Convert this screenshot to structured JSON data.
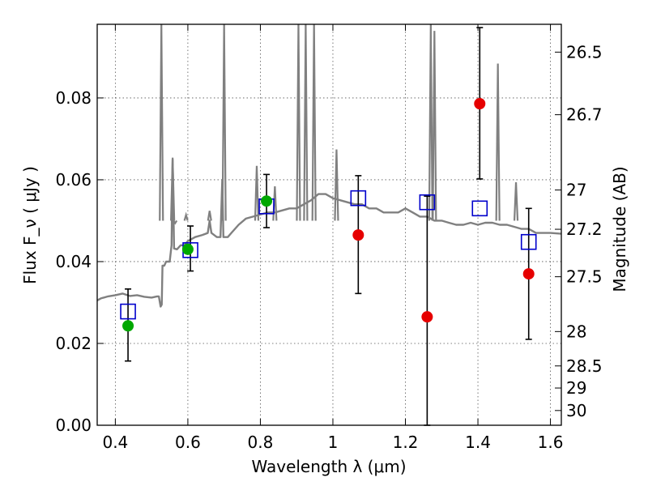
{
  "chart_data": {
    "type": "scatter",
    "xlabel": "Wavelength λ (μm)",
    "ylabel": "Flux F_ν ( μJy )",
    "y2label": "Magnitude (AB)",
    "xlim": [
      0.35,
      1.63
    ],
    "ylim": [
      0.0,
      0.098
    ],
    "grid": true,
    "x_ticks": [
      0.4,
      0.6,
      0.8,
      1.0,
      1.2,
      1.4,
      1.6
    ],
    "x_tick_labels": [
      "0.4",
      "0.6",
      "0.8",
      "1",
      "1.2",
      "1.4",
      "1.6"
    ],
    "y_ticks": [
      0.0,
      0.02,
      0.04,
      0.06,
      0.08
    ],
    "y_tick_labels": [
      "0.00",
      "0.02",
      "0.04",
      "0.06",
      "0.08"
    ],
    "y2_ticks": [
      {
        "mag": 26.5,
        "flux": 0.0912
      },
      {
        "mag": 26.7,
        "flux": 0.0759
      },
      {
        "mag": 27,
        "flux": 0.0575
      },
      {
        "mag": 27.2,
        "flux": 0.0479
      },
      {
        "mag": 27.5,
        "flux": 0.0363
      },
      {
        "mag": 28,
        "flux": 0.0229
      },
      {
        "mag": 28.5,
        "flux": 0.0145
      },
      {
        "mag": 29,
        "flux": 0.0091
      },
      {
        "mag": 30,
        "flux": 0.0036
      }
    ],
    "series": [
      {
        "marker": "model-spectrum-line",
        "color": "#808080",
        "points": [
          [
            0.35,
            0.0305
          ],
          [
            0.36,
            0.031
          ],
          [
            0.38,
            0.0315
          ],
          [
            0.4,
            0.0318
          ],
          [
            0.42,
            0.0322
          ],
          [
            0.44,
            0.0316
          ],
          [
            0.46,
            0.0318
          ],
          [
            0.48,
            0.0314
          ],
          [
            0.5,
            0.0312
          ],
          [
            0.515,
            0.0315
          ],
          [
            0.52,
            0.0315
          ],
          [
            0.525,
            0.029
          ],
          [
            0.528,
            0.0295
          ],
          [
            0.53,
            0.039
          ],
          [
            0.535,
            0.039
          ],
          [
            0.54,
            0.04
          ],
          [
            0.55,
            0.04
          ],
          [
            0.555,
            0.044
          ],
          [
            0.558,
            0.065
          ],
          [
            0.562,
            0.0432
          ],
          [
            0.57,
            0.043
          ],
          [
            0.58,
            0.044
          ],
          [
            0.59,
            0.044
          ],
          [
            0.6,
            0.045
          ],
          [
            0.62,
            0.046
          ],
          [
            0.64,
            0.0465
          ],
          [
            0.655,
            0.047
          ],
          [
            0.66,
            0.05
          ],
          [
            0.665,
            0.047
          ],
          [
            0.68,
            0.046
          ],
          [
            0.69,
            0.046
          ],
          [
            0.695,
            0.06
          ],
          [
            0.698,
            0.046
          ],
          [
            0.71,
            0.046
          ],
          [
            0.72,
            0.047
          ],
          [
            0.74,
            0.049
          ],
          [
            0.76,
            0.0505
          ],
          [
            0.78,
            0.051
          ],
          [
            0.8,
            0.0515
          ],
          [
            0.82,
            0.052
          ],
          [
            0.84,
            0.052
          ],
          [
            0.86,
            0.0525
          ],
          [
            0.88,
            0.053
          ],
          [
            0.9,
            0.053
          ],
          [
            0.92,
            0.054
          ],
          [
            0.94,
            0.055
          ],
          [
            0.96,
            0.0565
          ],
          [
            0.98,
            0.0565
          ],
          [
            1.0,
            0.0555
          ],
          [
            1.02,
            0.055
          ],
          [
            1.04,
            0.0545
          ],
          [
            1.06,
            0.054
          ],
          [
            1.08,
            0.054
          ],
          [
            1.1,
            0.053
          ],
          [
            1.12,
            0.053
          ],
          [
            1.14,
            0.052
          ],
          [
            1.16,
            0.052
          ],
          [
            1.18,
            0.052
          ],
          [
            1.2,
            0.053
          ],
          [
            1.22,
            0.052
          ],
          [
            1.24,
            0.051
          ],
          [
            1.26,
            0.051
          ],
          [
            1.28,
            0.05
          ],
          [
            1.3,
            0.05
          ],
          [
            1.32,
            0.0495
          ],
          [
            1.34,
            0.049
          ],
          [
            1.36,
            0.049
          ],
          [
            1.38,
            0.0495
          ],
          [
            1.4,
            0.049
          ],
          [
            1.42,
            0.0495
          ],
          [
            1.44,
            0.0495
          ],
          [
            1.46,
            0.049
          ],
          [
            1.48,
            0.049
          ],
          [
            1.5,
            0.0485
          ],
          [
            1.52,
            0.048
          ],
          [
            1.54,
            0.048
          ],
          [
            1.56,
            0.047
          ],
          [
            1.58,
            0.047
          ],
          [
            1.6,
            0.047
          ],
          [
            1.63,
            0.0468
          ]
        ]
      },
      {
        "marker": "spectrum-emission-lines",
        "color": "#808080",
        "lines": [
          [
            0.527,
            0.098
          ],
          [
            0.558,
            0.065
          ],
          [
            0.565,
            0.049
          ],
          [
            0.595,
            0.051
          ],
          [
            0.66,
            0.052
          ],
          [
            0.7,
            0.098
          ],
          [
            0.79,
            0.063
          ],
          [
            0.84,
            0.058
          ],
          [
            0.905,
            0.098
          ],
          [
            0.925,
            0.098
          ],
          [
            0.948,
            0.098
          ],
          [
            1.01,
            0.067
          ],
          [
            1.27,
            0.098
          ],
          [
            1.28,
            0.096
          ],
          [
            1.455,
            0.088
          ],
          [
            1.505,
            0.059
          ]
        ]
      },
      {
        "marker": "open-square",
        "color": "#0000cc",
        "points": [
          [
            0.435,
            0.0278
          ],
          [
            0.607,
            0.0428
          ],
          [
            0.817,
            0.0535
          ],
          [
            1.07,
            0.0555
          ],
          [
            1.26,
            0.0545
          ],
          [
            1.405,
            0.053
          ],
          [
            1.54,
            0.0448
          ]
        ]
      },
      {
        "marker": "filled-circle",
        "color": "#00a800",
        "points": [
          [
            0.435,
            0.0243
          ],
          [
            0.6,
            0.043
          ],
          [
            0.817,
            0.0548
          ]
        ]
      },
      {
        "marker": "filled-circle",
        "color": "#e60000",
        "points": [
          [
            1.07,
            0.0465
          ],
          [
            1.26,
            0.0265
          ],
          [
            1.405,
            0.0786
          ],
          [
            1.54,
            0.037
          ]
        ]
      },
      {
        "marker": "error-bars",
        "color": "#000000",
        "bars": [
          [
            0.435,
            0.0157,
            0.0333
          ],
          [
            0.607,
            0.0377,
            0.0487
          ],
          [
            0.817,
            0.0483,
            0.0613
          ],
          [
            1.07,
            0.0322,
            0.061
          ],
          [
            1.26,
            0.0,
            0.056
          ],
          [
            1.405,
            0.0602,
            0.0972
          ],
          [
            1.54,
            0.021,
            0.053
          ]
        ]
      }
    ]
  }
}
